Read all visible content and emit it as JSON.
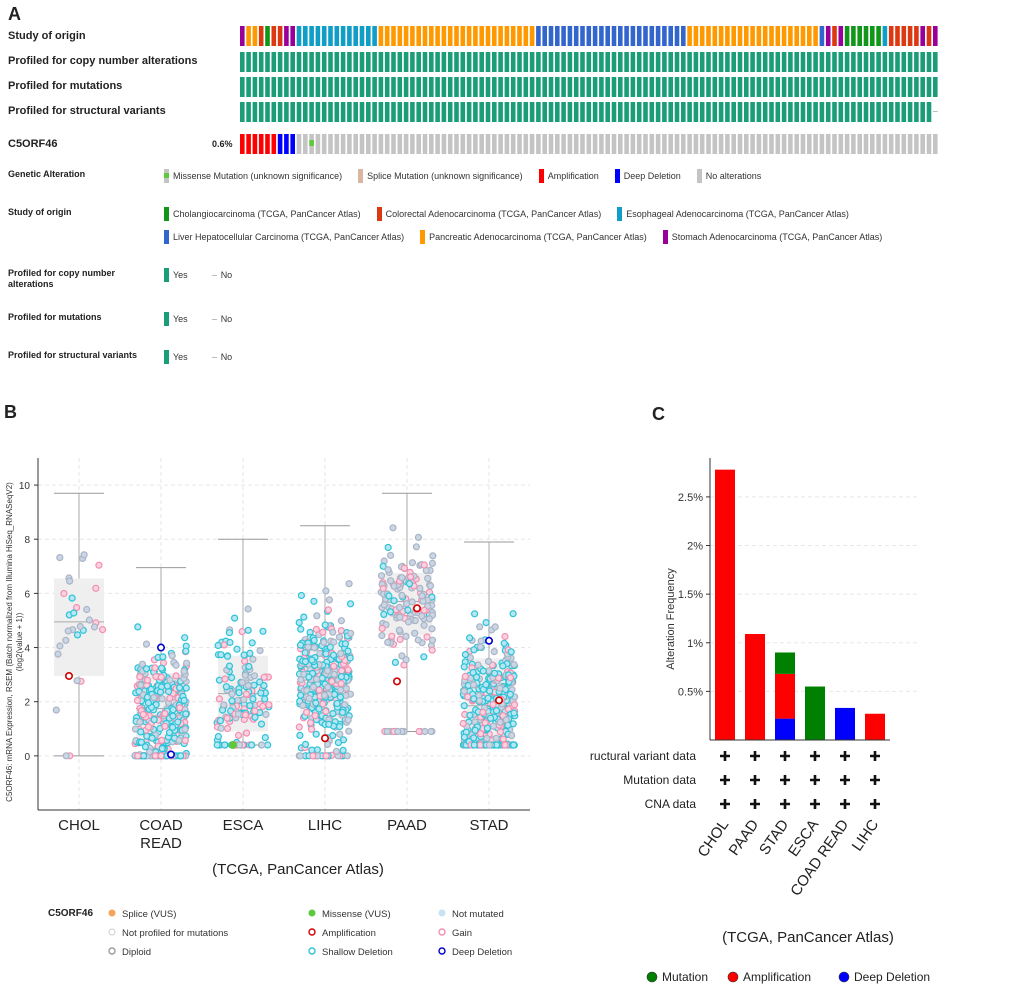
{
  "panel_a": {
    "letter": "A",
    "tracks": {
      "study": "Study of origin",
      "cna": "Profiled for copy number alterations",
      "mut": "Profiled for mutations",
      "sv": "Profiled for structural variants"
    },
    "gene": {
      "name": "C5ORF46",
      "pct": "0.6%"
    },
    "colors": {
      "CHOL": "#109618",
      "COAD": "#dc3912",
      "ESCA": "#109dc6",
      "LIHC": "#3366cc",
      "PAAD": "#ff9900",
      "STAD": "#990099",
      "profiled": "#1b9e77",
      "amp": "#ff0000",
      "del": "#0000ff",
      "none": "#c4c4c4",
      "missense": "#5ec93b",
      "splice": "#d8b7a0"
    },
    "legend": {
      "genetic_alteration": {
        "title": "Genetic Alteration",
        "missense": "Missense Mutation (unknown significance)",
        "splice": "Splice Mutation (unknown significance)",
        "amp": "Amplification",
        "del": "Deep Deletion",
        "none": "No alterations"
      },
      "study": {
        "title": "Study of origin",
        "chol": "Cholangiocarcinoma (TCGA, PanCancer Atlas)",
        "coad": "Colorectal Adenocarcinoma (TCGA, PanCancer Atlas)",
        "esca": "Esophageal Adenocarcinoma (TCGA, PanCancer Atlas)",
        "lihc": "Liver Hepatocellular Carcinoma (TCGA, PanCancer Atlas)",
        "paad": "Pancreatic Adenocarcinoma (TCGA, PanCancer Atlas)",
        "stad": "Stomach Adenocarcinoma (TCGA, PanCancer Atlas)"
      },
      "cna": {
        "title_line1": "Profiled for copy number",
        "title_line2": "alterations"
      },
      "mut": {
        "title": "Profiled for mutations"
      },
      "sv": {
        "title": "Profiled for structural variants"
      },
      "yes": "Yes",
      "no": "No"
    }
  },
  "panel_b": {
    "letter": "B",
    "legend_title": "C5ORF46",
    "legend": {
      "splice": "Splice (VUS)",
      "missense": "Missense (VUS)",
      "not_mutated": "Not mutated",
      "not_profiled": "Not profiled for mutations",
      "amp": "Amplification",
      "gain": "Gain",
      "diploid": "Diploid",
      "shallow": "Shallow Deletion",
      "deep": "Deep Deletion"
    },
    "chart_data": {
      "type": "scatter",
      "subtype": "box-and-strip",
      "ylabel_line1": "C5ORF46: mRNA Expression, RSEM (Batch normalized from Illumina HiSeq_RNASeqV2)",
      "ylabel_line2": "(log2(value + 1))",
      "xlabel": "(TCGA, PanCancer Atlas)",
      "ylim": [
        -2,
        11
      ],
      "yticks": [
        "0",
        "2",
        "4",
        "6",
        "8",
        "10"
      ],
      "categories": [
        {
          "line1": "CHOL",
          "line2": ""
        },
        {
          "line1": "COAD",
          "line2": "READ"
        },
        {
          "line1": "ESCA",
          "line2": ""
        },
        {
          "line1": "LIHC",
          "line2": ""
        },
        {
          "line1": "PAAD",
          "line2": ""
        },
        {
          "line1": "STAD",
          "line2": ""
        }
      ],
      "boxes": [
        {
          "min": 0,
          "q1": 2.95,
          "median": 4.95,
          "q3": 6.55,
          "max": 9.7
        },
        {
          "min": 0,
          "q1": 0.55,
          "median": 1.75,
          "q3": 3.05,
          "max": 6.95
        },
        {
          "min": 0.4,
          "q1": 0.9,
          "median": 2.3,
          "q3": 3.7,
          "max": 8.0
        },
        {
          "min": 0,
          "q1": 1.35,
          "median": 2.8,
          "q3": 4.2,
          "max": 8.5
        },
        {
          "min": 0.9,
          "q1": 4.45,
          "median": 5.7,
          "q3": 6.75,
          "max": 9.7
        },
        {
          "min": 0.4,
          "q1": 0.55,
          "median": 1.85,
          "q3": 3.6,
          "max": 7.9
        }
      ],
      "counts": [
        30,
        330,
        150,
        360,
        160,
        380
      ],
      "highlighted": [
        {
          "group": 0,
          "y": 2.95,
          "type": "amp"
        },
        {
          "group": 1,
          "y": 4.0,
          "type": "deep"
        },
        {
          "group": 1,
          "y": 0.05,
          "type": "deep"
        },
        {
          "group": 2,
          "y": 0.4,
          "type": "missense"
        },
        {
          "group": 3,
          "y": 0.65,
          "type": "amp"
        },
        {
          "group": 4,
          "y": 5.45,
          "type": "amp"
        },
        {
          "group": 4,
          "y": 2.75,
          "type": "amp"
        },
        {
          "group": 5,
          "y": 4.25,
          "type": "deep"
        },
        {
          "group": 5,
          "y": 2.05,
          "type": "amp"
        }
      ]
    }
  },
  "panel_c": {
    "letter": "C",
    "chart_data": {
      "type": "bar",
      "stacked": true,
      "ylabel": "Alteration Frequency",
      "xlabel": "(TCGA, PanCancer Atlas)",
      "ylim": [
        0,
        2.9
      ],
      "yticks": [
        "0.5%",
        "1%",
        "1.5%",
        "2%",
        "2.5%"
      ],
      "categories": [
        "CHOL",
        "PAAD",
        "STAD",
        "ESCA",
        "COAD READ",
        "LIHC"
      ],
      "series": [
        {
          "name": "Deep Deletion",
          "color": "#0000ff",
          "values": [
            0,
            0,
            0.22,
            0,
            0.33,
            0
          ]
        },
        {
          "name": "Amplification",
          "color": "#ff0000",
          "values": [
            2.78,
            1.09,
            0.46,
            0,
            0,
            0.27
          ]
        },
        {
          "name": "Mutation",
          "color": "#008000",
          "values": [
            0,
            0,
            0.22,
            0.55,
            0,
            0
          ]
        }
      ],
      "rows": [
        "Structural variant data",
        "Mutation data",
        "CNA data"
      ],
      "legend": [
        "Mutation",
        "Amplification",
        "Deep Deletion"
      ]
    }
  }
}
